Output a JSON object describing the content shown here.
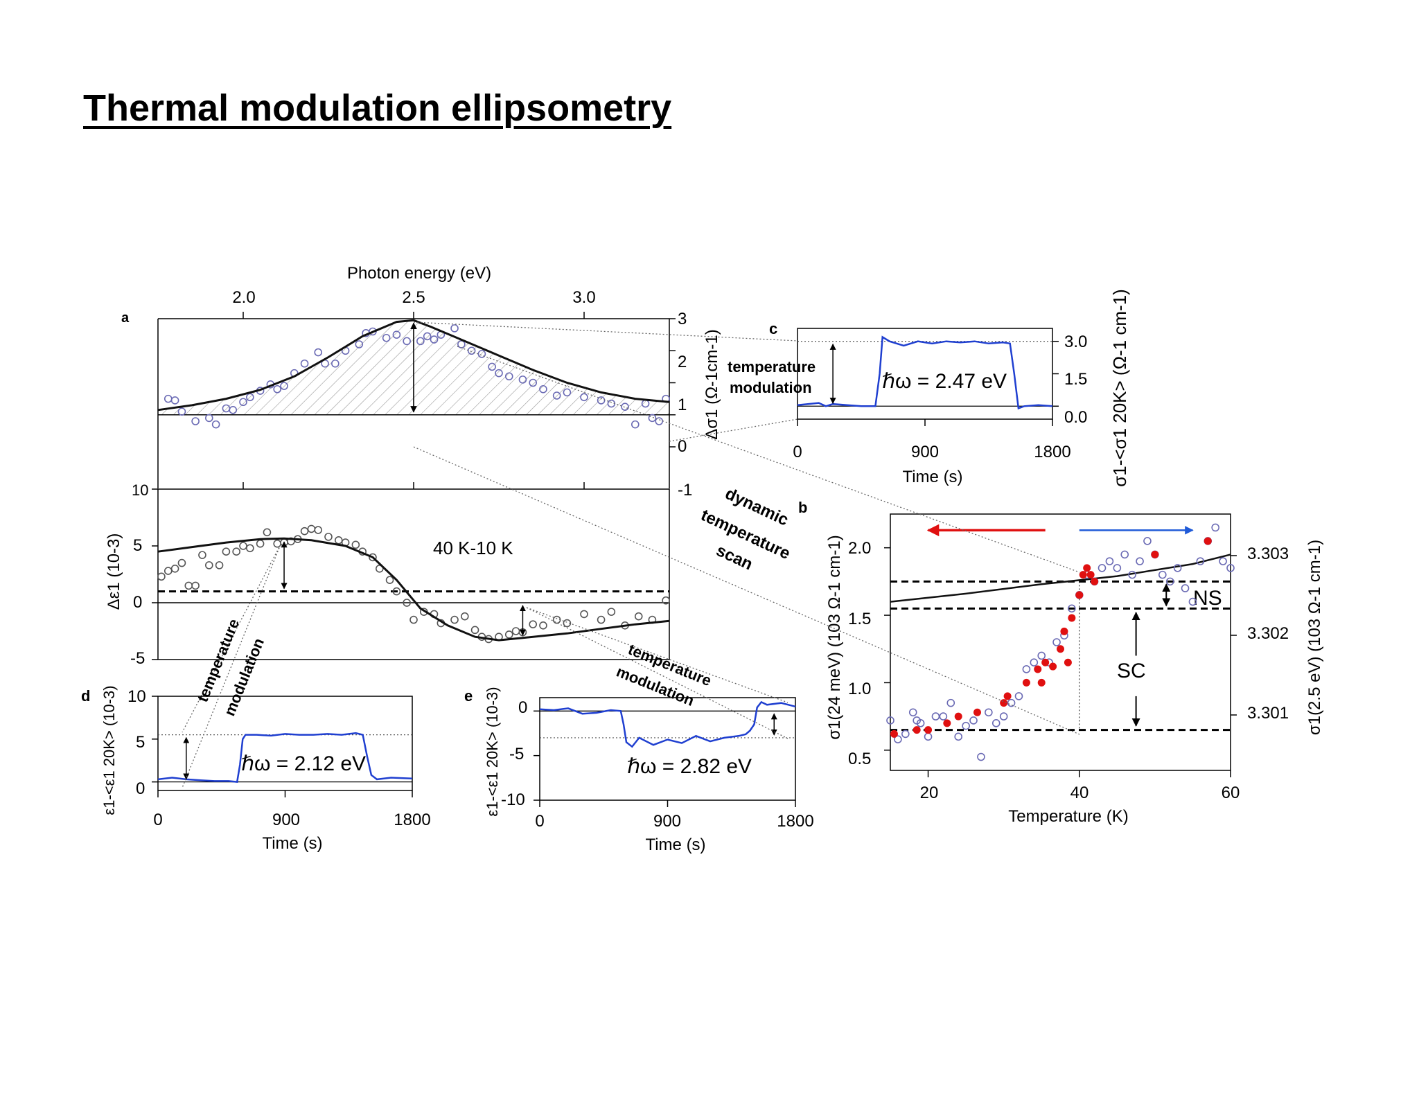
{
  "slide": {
    "title": "Thermal modulation ellipsometry"
  },
  "colors": {
    "fit_line": "#111111",
    "open_marker": "#6a6ab4",
    "trace": "#1f3fd0",
    "red_marker": "#e01010",
    "red_arrow": "#e01010",
    "blue_arrow": "#1f5ad8"
  },
  "chart_data": [
    {
      "id": "a-top",
      "panel_label": "a",
      "type": "scatter",
      "top_xlabel": "Photon energy (eV)",
      "xlim": [
        1.75,
        3.25
      ],
      "x_ticks": [
        "2.0",
        "2.5",
        "3.0"
      ],
      "ylabel": "Δσ1 (Ω-1cm-1)",
      "ylim": [
        -1,
        3
      ],
      "y_ticks": [
        "3",
        "2",
        "1",
        "0",
        "-1"
      ],
      "fit_curve": {
        "x": [
          1.75,
          1.85,
          1.95,
          2.05,
          2.15,
          2.25,
          2.35,
          2.45,
          2.5,
          2.55,
          2.65,
          2.75,
          2.85,
          2.95,
          3.05,
          3.15,
          3.25
        ],
        "y": [
          0.15,
          0.3,
          0.5,
          0.78,
          1.2,
          1.8,
          2.45,
          2.9,
          2.95,
          2.75,
          2.3,
          1.85,
          1.4,
          1.0,
          0.7,
          0.5,
          0.4
        ]
      },
      "points": {
        "x": [
          1.78,
          1.8,
          1.82,
          1.86,
          1.9,
          1.92,
          1.95,
          1.97,
          2.0,
          2.02,
          2.05,
          2.08,
          2.1,
          2.12,
          2.15,
          2.18,
          2.22,
          2.24,
          2.27,
          2.3,
          2.34,
          2.36,
          2.38,
          2.42,
          2.45,
          2.48,
          2.52,
          2.54,
          2.56,
          2.58,
          2.62,
          2.64,
          2.67,
          2.7,
          2.73,
          2.75,
          2.78,
          2.82,
          2.85,
          2.88,
          2.92,
          2.95,
          3.0,
          3.05,
          3.08,
          3.12,
          3.15,
          3.18,
          3.2,
          3.22,
          3.24
        ],
        "y": [
          0.5,
          0.45,
          0.1,
          -0.2,
          -0.1,
          -0.3,
          0.2,
          0.15,
          0.4,
          0.55,
          0.75,
          0.95,
          0.8,
          0.9,
          1.3,
          1.6,
          1.95,
          1.6,
          1.6,
          2.0,
          2.2,
          2.55,
          2.6,
          2.4,
          2.5,
          2.3,
          2.3,
          2.45,
          2.35,
          2.5,
          2.7,
          2.2,
          2.0,
          1.9,
          1.5,
          1.3,
          1.2,
          1.1,
          1.0,
          0.8,
          0.6,
          0.7,
          0.55,
          0.45,
          0.35,
          0.25,
          -0.3,
          0.35,
          -0.1,
          -0.2,
          0.5
        ]
      }
    },
    {
      "id": "a-bottom",
      "type": "scatter",
      "ylabel": "Δε1 (10-3)",
      "xlim": [
        1.75,
        3.25
      ],
      "ylim": [
        -5,
        10
      ],
      "y_ticks": [
        "10",
        "5",
        "0",
        "-5"
      ],
      "annotation": "40 K-10 K",
      "dashed_level": 1.0,
      "fit_curve": {
        "x": [
          1.75,
          1.85,
          1.95,
          2.05,
          2.12,
          2.2,
          2.3,
          2.38,
          2.45,
          2.52,
          2.6,
          2.68,
          2.75,
          2.82,
          2.95,
          3.05,
          3.15,
          3.25
        ],
        "y": [
          4.5,
          4.9,
          5.3,
          5.6,
          5.65,
          5.5,
          5.0,
          4.0,
          2.0,
          -0.5,
          -2.0,
          -3.0,
          -3.3,
          -3.1,
          -2.7,
          -2.3,
          -1.9,
          -1.6
        ]
      },
      "points": {
        "x": [
          1.76,
          1.78,
          1.8,
          1.82,
          1.84,
          1.86,
          1.88,
          1.9,
          1.93,
          1.95,
          1.98,
          2.0,
          2.02,
          2.05,
          2.07,
          2.1,
          2.12,
          2.14,
          2.16,
          2.18,
          2.2,
          2.22,
          2.25,
          2.28,
          2.3,
          2.33,
          2.35,
          2.38,
          2.4,
          2.43,
          2.45,
          2.48,
          2.5,
          2.53,
          2.56,
          2.58,
          2.62,
          2.65,
          2.68,
          2.7,
          2.72,
          2.75,
          2.78,
          2.8,
          2.82,
          2.85,
          2.88,
          2.92,
          2.95,
          3.0,
          3.05,
          3.08,
          3.12,
          3.16,
          3.2,
          3.24
        ],
        "y": [
          2.3,
          2.8,
          3.0,
          3.5,
          1.5,
          1.5,
          4.2,
          3.3,
          3.3,
          4.5,
          4.5,
          5.0,
          4.8,
          5.2,
          6.2,
          5.2,
          5.3,
          5.4,
          5.6,
          6.3,
          6.5,
          6.4,
          5.8,
          5.5,
          5.3,
          5.1,
          4.5,
          4.0,
          3.0,
          2.0,
          1.0,
          0.0,
          -1.5,
          -0.8,
          -1.0,
          -1.8,
          -1.5,
          -1.2,
          -2.4,
          -3.0,
          -3.2,
          -3.0,
          -2.8,
          -2.5,
          -2.6,
          -1.9,
          -2.0,
          -1.5,
          -1.8,
          -1.0,
          -1.5,
          -0.8,
          -2.0,
          -1.2,
          -1.5,
          0.2
        ]
      }
    },
    {
      "id": "c",
      "panel_label": "c",
      "type": "line",
      "xlabel": "Time (s)",
      "xlim": [
        0,
        1800
      ],
      "x_ticks": [
        "0",
        "900",
        "1800"
      ],
      "ylabel": "σ1-<σ1 20K> (Ω-1 cm-1)",
      "ylim": [
        -0.6,
        3.6
      ],
      "y_ticks": [
        "3.0",
        "1.5",
        "0.0"
      ],
      "annotation": "ℏω = 2.47 eV",
      "inner_label": [
        "temperature",
        "modulation"
      ],
      "series": [
        {
          "x": [
            0,
            150,
            200,
            250,
            350,
            450,
            550,
            580,
            600,
            650,
            750,
            850,
            950,
            1050,
            1150,
            1250,
            1350,
            1450,
            1500,
            1530,
            1560,
            1600,
            1700,
            1800
          ],
          "y": [
            0.05,
            0.15,
            0.0,
            0.1,
            0.05,
            0.0,
            0.0,
            1.5,
            3.2,
            3.0,
            2.8,
            3.0,
            2.9,
            3.0,
            2.95,
            3.0,
            2.9,
            2.95,
            2.9,
            1.5,
            -0.1,
            0.0,
            0.05,
            0.0
          ]
        }
      ]
    },
    {
      "id": "b",
      "panel_label": "b",
      "type": "scatter",
      "xlabel": "Temperature (K)",
      "xlim": [
        15,
        60
      ],
      "x_ticks": [
        "20",
        "40",
        "60"
      ],
      "ylabel": "σ1(24 meV) (103 Ω-1 cm-1)",
      "ylim": [
        0.35,
        2.25
      ],
      "y_ticks": [
        "2.0",
        "1.5",
        "1.0",
        "0.5"
      ],
      "right_ylabel": "σ1(2.5 eV) (103 Ω-1 cm-1)",
      "right_ylim": [
        3.3004,
        3.3032
      ],
      "right_ticks": [
        "3.303",
        "3.302",
        "3.301"
      ],
      "labels": {
        "ns": "NS",
        "sc": "SC"
      },
      "dashed_levels": [
        1.75,
        1.55,
        0.65
      ],
      "line_curve": {
        "x": [
          15,
          25,
          35,
          45,
          55,
          60
        ],
        "y": [
          1.6,
          1.66,
          1.73,
          1.79,
          1.88,
          1.95
        ]
      },
      "open_points": {
        "x": [
          15,
          16,
          17,
          18,
          18.5,
          19,
          20,
          21,
          22,
          23,
          24,
          25,
          26,
          27,
          28,
          29,
          30,
          31,
          32,
          33,
          34,
          35,
          36,
          37,
          38,
          39,
          40,
          41,
          42,
          43,
          44,
          45,
          46,
          47,
          48,
          49,
          50,
          51,
          52,
          53,
          54,
          55,
          56,
          57,
          58,
          59,
          60
        ],
        "y": [
          0.72,
          0.58,
          0.62,
          0.78,
          0.72,
          0.7,
          0.6,
          0.75,
          0.75,
          0.85,
          0.6,
          0.68,
          0.72,
          0.45,
          0.78,
          0.7,
          0.75,
          0.85,
          0.9,
          1.1,
          1.15,
          1.2,
          1.15,
          1.3,
          1.35,
          1.55,
          1.65,
          1.8,
          1.75,
          1.85,
          1.9,
          1.85,
          1.95,
          1.8,
          1.9,
          2.05,
          1.95,
          1.8,
          1.75,
          1.85,
          1.7,
          1.6,
          1.9,
          2.05,
          2.15,
          1.9,
          1.85
        ]
      },
      "filled_points": {
        "x": [
          15.5,
          18.5,
          20,
          22.5,
          24,
          26.5,
          30,
          30.5,
          33,
          34.5,
          35,
          35.5,
          36.5,
          37.5,
          38,
          38.5,
          39,
          40,
          40.5,
          41,
          41.5,
          42,
          50,
          57
        ],
        "y": [
          0.62,
          0.65,
          0.65,
          0.7,
          0.75,
          0.78,
          0.85,
          0.9,
          1.0,
          1.1,
          1.0,
          1.15,
          1.12,
          1.25,
          1.38,
          1.15,
          1.48,
          1.65,
          1.8,
          1.85,
          1.8,
          1.75,
          1.95,
          2.05
        ]
      }
    },
    {
      "id": "d",
      "panel_label": "d",
      "type": "line",
      "xlabel": "Time (s)",
      "xlim": [
        0,
        1800
      ],
      "x_ticks": [
        "0",
        "900",
        "1800"
      ],
      "ylabel": "ε1-<ε1 20K> (10-3)",
      "ylim": [
        -1,
        10
      ],
      "y_ticks": [
        "10",
        "5",
        "0"
      ],
      "annotation": "ℏω = 2.12 eV",
      "series": [
        {
          "x": [
            0,
            100,
            200,
            300,
            400,
            500,
            560,
            580,
            600,
            620,
            700,
            800,
            900,
            1000,
            1100,
            1200,
            1300,
            1400,
            1450,
            1480,
            1510,
            1550,
            1650,
            1800
          ],
          "y": [
            0.3,
            0.5,
            0.3,
            0.2,
            0.1,
            0.1,
            0.0,
            2.0,
            5.0,
            5.5,
            5.5,
            5.4,
            5.6,
            5.5,
            5.5,
            5.6,
            5.5,
            5.7,
            5.5,
            3.0,
            0.8,
            0.3,
            0.5,
            0.4
          ]
        }
      ]
    },
    {
      "id": "e",
      "panel_label": "e",
      "type": "line",
      "xlabel": "Time (s)",
      "xlim": [
        0,
        1800
      ],
      "x_ticks": [
        "0",
        "900",
        "1800"
      ],
      "ylabel": "ε1-<ε1 20K> (10-3)",
      "ylim": [
        -10,
        1.5
      ],
      "y_ticks": [
        "0",
        "-5",
        "-10"
      ],
      "annotation": "ℏω = 2.82 eV",
      "series": [
        {
          "x": [
            0,
            100,
            200,
            300,
            400,
            500,
            570,
            590,
            610,
            650,
            700,
            800,
            900,
            1000,
            1100,
            1200,
            1300,
            1400,
            1450,
            1480,
            1510,
            1530,
            1560,
            1600,
            1700,
            1800
          ],
          "y": [
            0.2,
            0.1,
            0.3,
            -0.3,
            -0.2,
            0.1,
            0.0,
            -1.5,
            -3.5,
            -4.0,
            -3.0,
            -3.8,
            -3.2,
            -3.6,
            -2.8,
            -3.4,
            -3.0,
            -2.8,
            -2.6,
            -2.2,
            -1.5,
            0.4,
            1.0,
            0.7,
            0.9,
            0.5
          ]
        }
      ]
    }
  ],
  "annotations": {
    "dynamic_temperature_scan": [
      "dynamic",
      "temperature",
      "scan"
    ],
    "temperature_modulation_left": [
      "temperature",
      "modulation"
    ],
    "temperature_modulation_mid": [
      "temperature",
      "modulation"
    ]
  }
}
